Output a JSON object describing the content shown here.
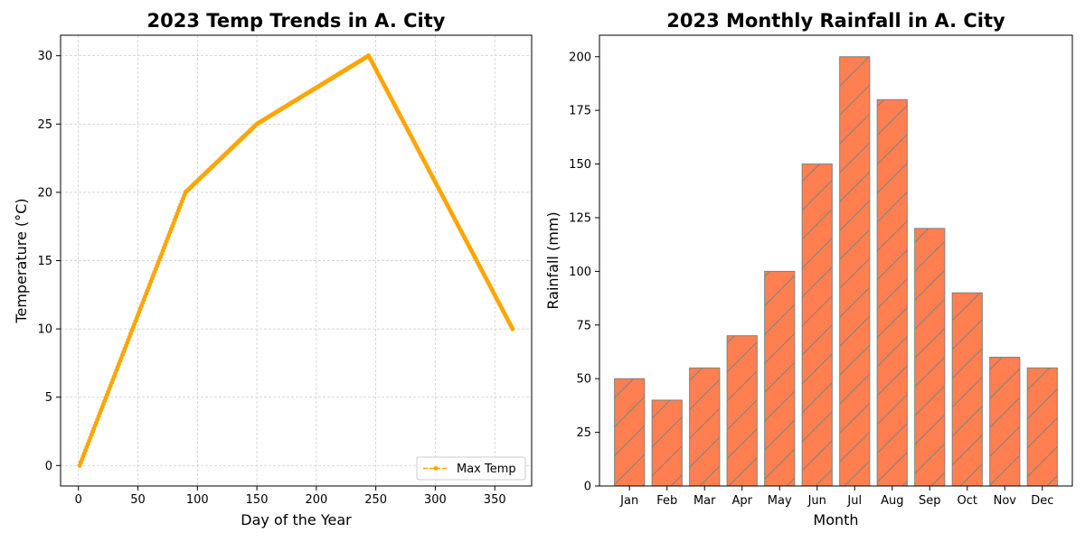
{
  "colors": {
    "line": "#FFA500",
    "bar_fill": "#FF7F50",
    "bar_edge": "#808080",
    "grid": "#c8c8c8"
  },
  "chart_data": [
    {
      "type": "line",
      "title": "2023 Temp Trends in A. City",
      "xlabel": "Day of the Year",
      "ylabel": "Temperature (°C)",
      "xlim": [
        -15,
        381
      ],
      "ylim": [
        -1.5,
        31.5
      ],
      "xticks": [
        0,
        50,
        100,
        150,
        200,
        250,
        300,
        350
      ],
      "yticks": [
        0,
        5,
        10,
        15,
        20,
        25,
        30
      ],
      "grid": true,
      "legend_position": "lower right",
      "series": [
        {
          "name": "Max Temp",
          "style": "dashed line with circle markers",
          "breakpoints": [
            {
              "x": 1,
              "y": 0
            },
            {
              "x": 90,
              "y": 20
            },
            {
              "x": 150,
              "y": 25
            },
            {
              "x": 244,
              "y": 30
            },
            {
              "x": 365,
              "y": 10
            }
          ]
        }
      ]
    },
    {
      "type": "bar",
      "title": "2023 Monthly Rainfall in A. City",
      "xlabel": "Month",
      "ylabel": "Rainfall (mm)",
      "ylim": [
        0,
        210
      ],
      "yticks": [
        0,
        25,
        50,
        75,
        100,
        125,
        150,
        175,
        200
      ],
      "categories": [
        "Jan",
        "Feb",
        "Mar",
        "Apr",
        "May",
        "Jun",
        "Jul",
        "Aug",
        "Sep",
        "Oct",
        "Nov",
        "Dec"
      ],
      "values": [
        50,
        40,
        55,
        70,
        100,
        150,
        200,
        180,
        120,
        90,
        60,
        55
      ],
      "hatch": "diagonal"
    }
  ]
}
